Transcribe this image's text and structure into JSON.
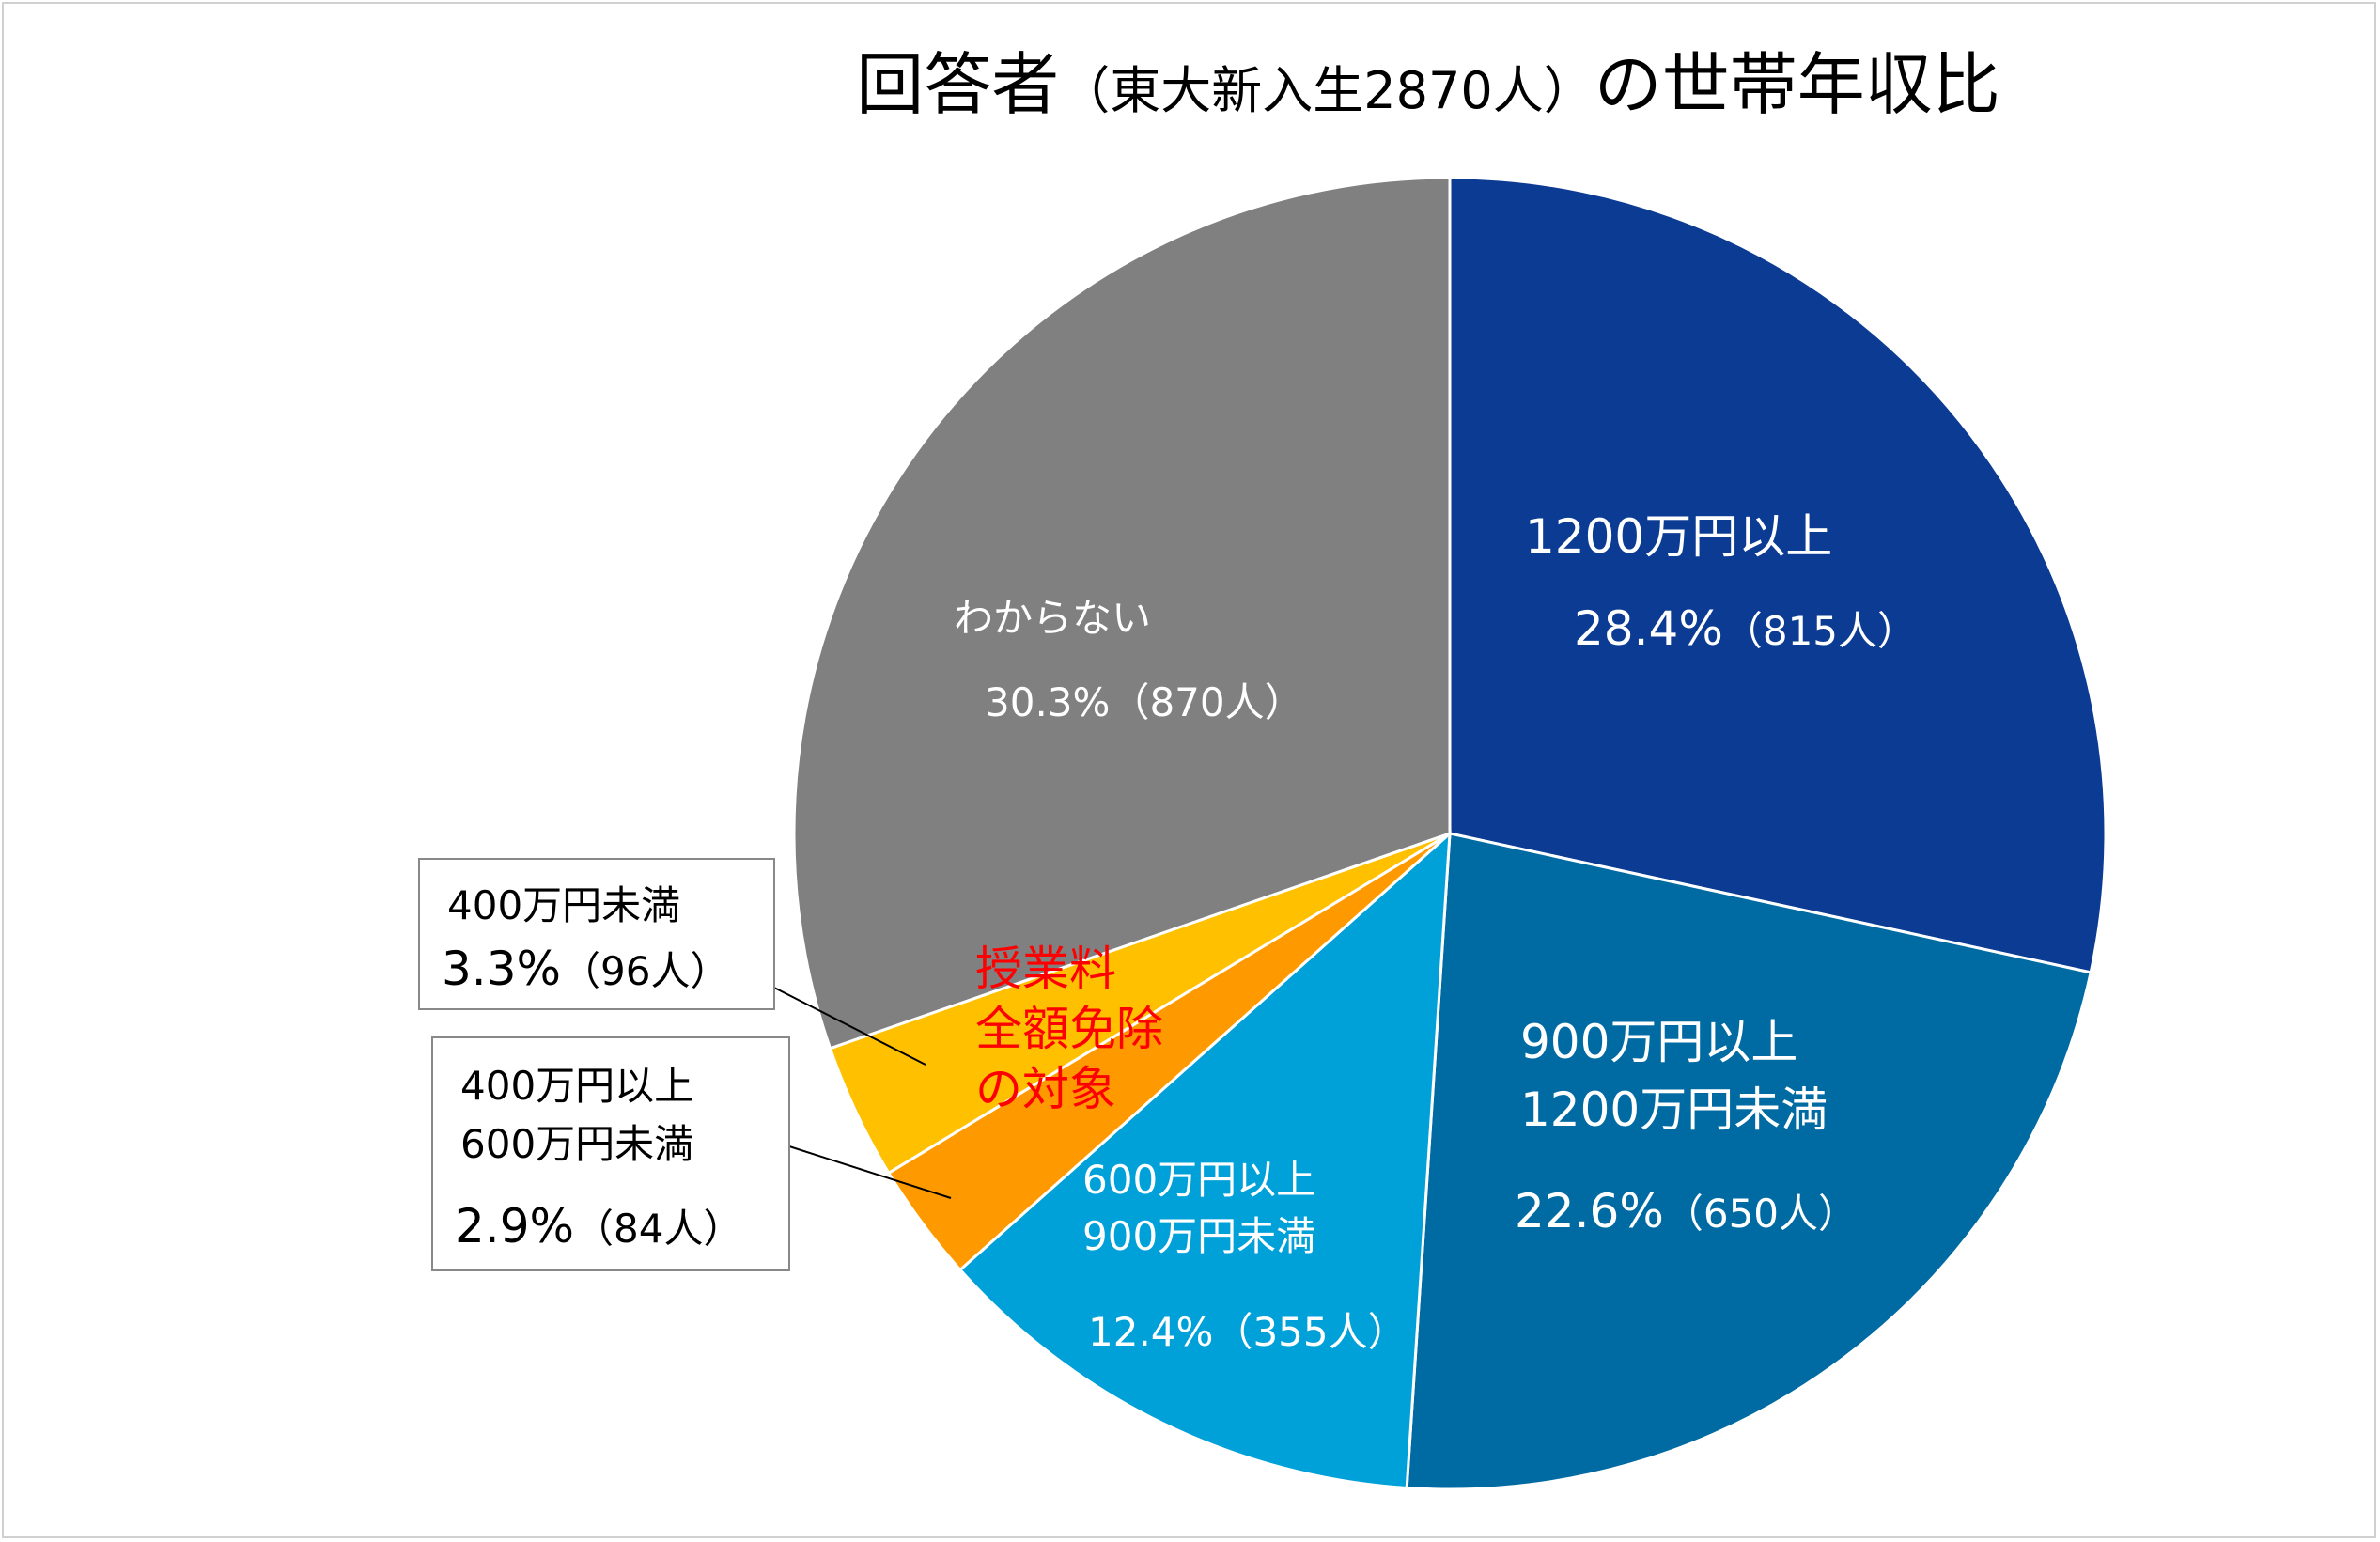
{
  "chart_data": {
    "type": "pie",
    "title": {
      "main": "回答者",
      "paren": "（東大新入生2870人）",
      "tail": "の世帯年収比"
    },
    "total": 2870,
    "start_angle_deg": 0,
    "direction": "clockwise",
    "slices": [
      {
        "key": "s1200",
        "label_lines": [
          "1200万円以上"
        ],
        "percent_text": "28.4%",
        "count_text": "（815人）",
        "value": 815,
        "percent": 28.4,
        "color": "#0b3b93",
        "label_color": "white"
      },
      {
        "key": "s900",
        "label_lines": [
          "900万円以上",
          "1200万円未満"
        ],
        "percent_text": "22.6%",
        "count_text": "（650人）",
        "value": 650,
        "percent": 22.6,
        "color": "#006aa3",
        "label_color": "white"
      },
      {
        "key": "s600",
        "label_lines": [
          "600万円以上",
          "900万円未満"
        ],
        "percent_text": "12.4%",
        "count_text": "（355人）",
        "value": 355,
        "percent": 12.4,
        "color": "#00a0d9",
        "label_color": "white"
      },
      {
        "key": "s400_600",
        "label_lines": [
          "400万円以上",
          "600万円未満"
        ],
        "percent_text": "2.9%",
        "count_text": "（84人）",
        "value": 84,
        "percent": 2.9,
        "color": "#ff9900",
        "label_color": "black"
      },
      {
        "key": "s400",
        "label_lines": [
          "400万円未満"
        ],
        "percent_text": "3.3%",
        "count_text": "（96人）",
        "value": 96,
        "percent": 3.3,
        "color": "#ffc000",
        "label_color": "black"
      },
      {
        "key": "unknown",
        "label_lines": [
          "わからない"
        ],
        "percent_text": "30.3%",
        "count_text": "（870人）",
        "value": 870,
        "percent": 30.3,
        "color": "#808080",
        "label_color": "white"
      }
    ],
    "annotation": {
      "lines": [
        "授業料",
        "全額免除",
        "の対象"
      ],
      "color": "#ff0000"
    },
    "slice_border_color": "#ffffff",
    "legend": "none"
  }
}
